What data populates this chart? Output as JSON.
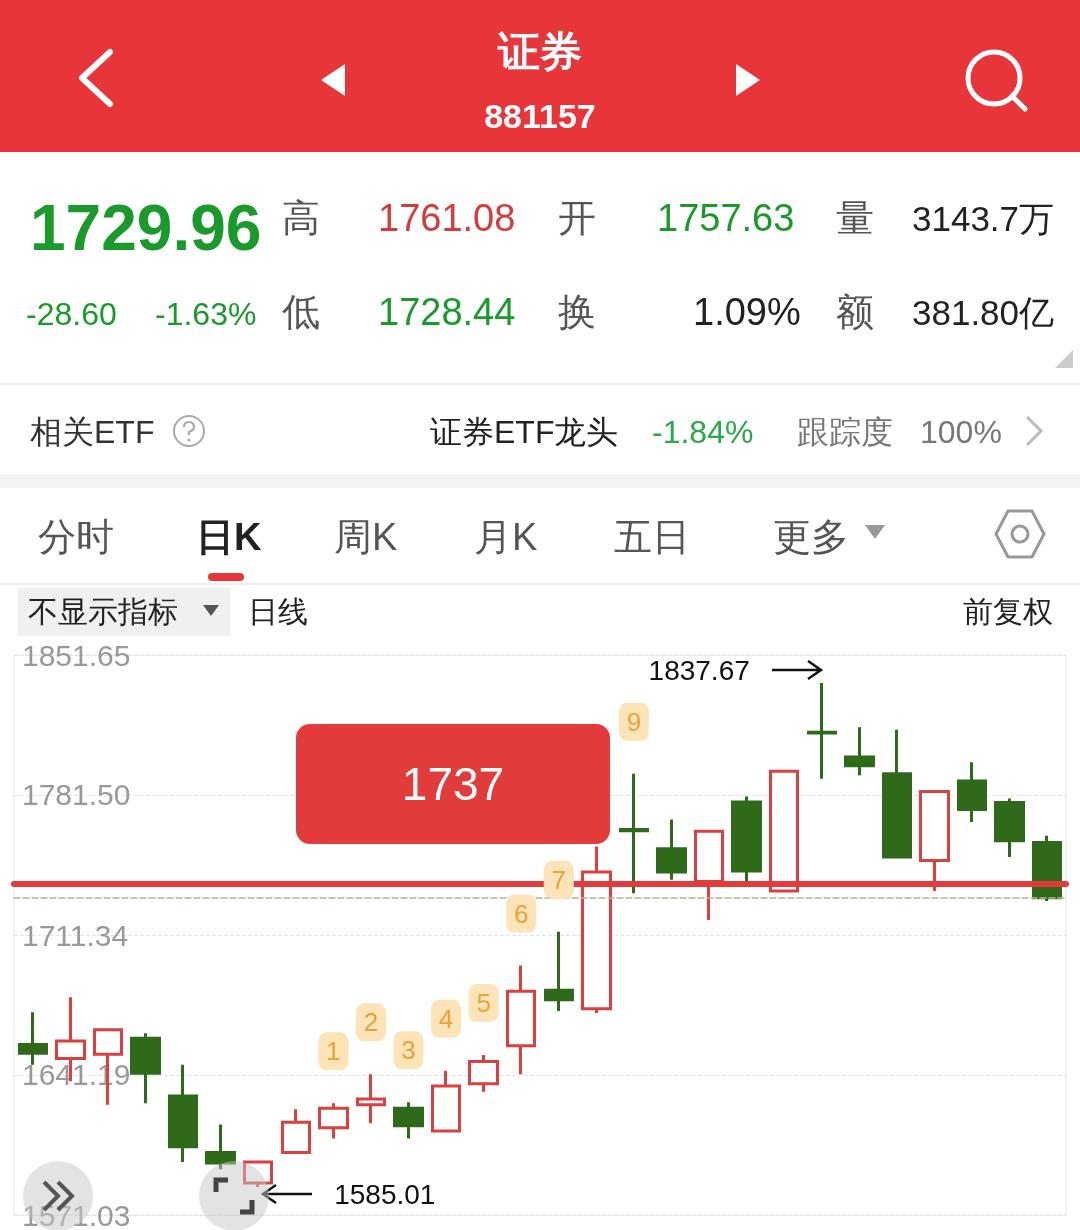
{
  "chart_data": {
    "type": "candlestick",
    "title": "证券",
    "subtitle": "881157",
    "categories": [
      null,
      null,
      null,
      null,
      null,
      null,
      null,
      null,
      null,
      null,
      null,
      null,
      null,
      null,
      null,
      null,
      null,
      null,
      null,
      null,
      null,
      null,
      null,
      null,
      null,
      null,
      null,
      null
    ],
    "ohlc": [
      [
        1656.5,
        1672.6,
        1646.3,
        1652.1
      ],
      [
        1649.4,
        1680.2,
        1638.0,
        1658.2
      ],
      [
        1651.6,
        1663.8,
        1626.3,
        1663.8
      ],
      [
        1659.6,
        1662.1,
        1627.0,
        1642.1
      ],
      [
        1630.7,
        1646.3,
        1597.6,
        1605.2
      ],
      [
        1602.4,
        1616.4,
        1594.0,
        1597.1
      ],
      [
        1587.1,
        1597.6,
        1585.01,
        1597.6
      ],
      [
        1602.4,
        1624.0,
        1602.4,
        1617.5
      ],
      [
        1614.7,
        1627.0,
        1609.4,
        1624.5
      ],
      [
        1626.3,
        1641.5,
        1617.0,
        1629.2
      ],
      [
        1624.5,
        1627.5,
        1609.4,
        1615.7
      ],
      [
        1613.1,
        1643.3,
        1613.1,
        1635.7
      ],
      [
        1636.8,
        1651.2,
        1632.8,
        1648.0
      ],
      [
        1655.9,
        1696.0,
        1641.5,
        1683.2
      ],
      [
        1683.7,
        1713.0,
        1673.2,
        1678.9
      ],
      [
        1674.4,
        1755.7,
        1672.3,
        1742.9
      ],
      [
        1764.2,
        1792.1,
        1732.3,
        1763.6
      ],
      [
        1754.5,
        1769.2,
        1739.0,
        1742.9
      ],
      [
        1738.1,
        1763.3,
        1718.8,
        1763.3
      ],
      [
        1778.0,
        1780.8,
        1737.6,
        1743.4
      ],
      [
        1733.4,
        1793.4,
        1733.4,
        1793.4
      ],
      [
        1812.9,
        1837.67,
        1789.6,
        1812.6
      ],
      [
        1800.5,
        1815.4,
        1791.4,
        1796.1
      ],
      [
        1792.1,
        1814.2,
        1750.4,
        1750.4
      ],
      [
        1748.7,
        1783.3,
        1733.4,
        1783.3
      ],
      [
        1788.5,
        1797.9,
        1768.0,
        1774.2
      ],
      [
        1777.7,
        1779.8,
        1750.4,
        1758.6
      ],
      [
        1757.63,
        1761.08,
        1728.44,
        1729.96
      ]
    ],
    "colors": [
      "#2f6a1b",
      "#d9403f",
      "#d9403f",
      "#2f6a1b",
      "#2f6a1b",
      "#2f6a1b",
      "#d9403f",
      "#d9403f",
      "#d9403f",
      "#d9403f",
      "#2f6a1b",
      "#d9403f",
      "#d9403f",
      "#d9403f",
      "#2f6a1b",
      "#d9403f",
      "#2f6a1b",
      "#2f6a1b",
      "#d9403f",
      "#2f6a1b",
      "#d9403f",
      "#2f6a1b",
      "#2f6a1b",
      "#2f6a1b",
      "#d9403f",
      "#2f6a1b",
      "#2f6a1b",
      "#2f6a1b"
    ],
    "value_labels": [
      null,
      null,
      null,
      null,
      null,
      null,
      null,
      null,
      "1",
      "2",
      "3",
      "4",
      "5",
      "6",
      "7",
      null,
      "9",
      null,
      null,
      null,
      null,
      null,
      null,
      null,
      null,
      null,
      null,
      null
    ],
    "ylim": [
      1571.03,
      1851.65
    ],
    "yticks": [
      1571.03,
      1641.19,
      1711.34,
      {
        "value": 1781.5,
        "label": "1781.50"
      },
      1851.65
    ],
    "grid": "y",
    "tick_labels": "y",
    "ref_lines": [
      {
        "axis": "y",
        "value": 1737,
        "label": "1737",
        "color": "#e23b3b",
        "line_style": "solid"
      },
      {
        "axis": "y",
        "value": 1729.96,
        "color": "#b8b48e",
        "line_style": "dashed"
      }
    ],
    "annotations": [
      "1729.96",
      "高",
      "1761.08",
      "开",
      "1757.63",
      "量",
      "3143.7万",
      "-28.60",
      "-1.63%",
      "低",
      "1728.44",
      "换",
      "1.09%",
      "额",
      "381.80亿",
      "相关ETF",
      "证券ETF龙头",
      "-1.84%",
      "跟踪度",
      "100%",
      "分时",
      "日K",
      "周K",
      "月K",
      "五日",
      "更多",
      "不显示指标",
      "日线",
      "前复权",
      "1837.67",
      "1585.01"
    ]
  }
}
